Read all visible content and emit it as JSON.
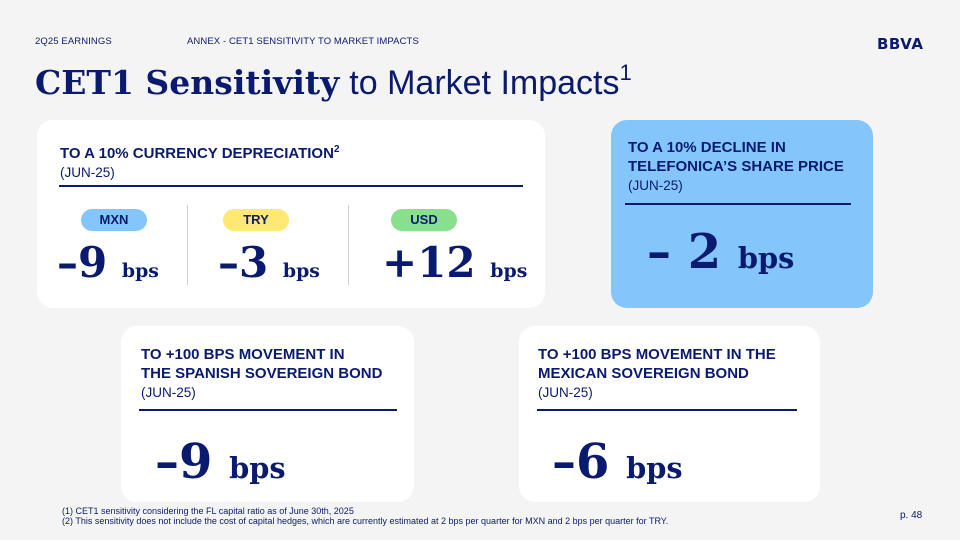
{
  "header": {
    "section": "2Q25 EARNINGS",
    "subsection": "ANNEX - CET1 SENSITIVITY TO MARKET IMPACTS",
    "logo": "BBVA"
  },
  "title": {
    "bold": "CET1 Sensitivity",
    "rest": "to Market Impacts",
    "footnote_ref": "1"
  },
  "currency_card": {
    "heading": "TO A 10% CURRENCY DEPRECIATION",
    "footnote_ref": "2",
    "date": "(JUN-25)",
    "items": [
      {
        "currency": "MXN",
        "color": "#84c6fb",
        "sign": "–",
        "value": "9",
        "unit": "bps"
      },
      {
        "currency": "TRY",
        "color": "#ffe873",
        "sign": "–",
        "value": "3",
        "unit": "bps"
      },
      {
        "currency": "USD",
        "color": "#88e08e",
        "sign": "+",
        "value": "12",
        "unit": "bps"
      }
    ]
  },
  "telefonica_card": {
    "heading_line1": "TO A 10% DECLINE IN",
    "heading_line2": "TELEFONICA’S SHARE PRICE",
    "date": "(JUN-25)",
    "sign": "–",
    "value": "2",
    "unit": "bps"
  },
  "spain_card": {
    "heading_line1": "TO +100 BPS MOVEMENT IN",
    "heading_line2": "THE SPANISH SOVEREIGN BOND",
    "date": "(JUN-25)",
    "sign": "–",
    "value": "9",
    "unit": "bps"
  },
  "mexico_card": {
    "heading_line1": "TO +100 BPS MOVEMENT IN THE",
    "heading_line2": "MEXICAN SOVEREIGN BOND",
    "date": "(JUN-25)",
    "sign": "–",
    "value": "6",
    "unit": "bps"
  },
  "footnotes": {
    "note1": "(1) CET1 sensitivity considering the FL capital ratio as of June 30th, 2025",
    "note2": "(2) This sensitivity does not include the cost of capital hedges, which are currently estimated at 2 bps per quarter for MXN and 2 bps per quarter for TRY."
  },
  "page_number": "p. 48"
}
